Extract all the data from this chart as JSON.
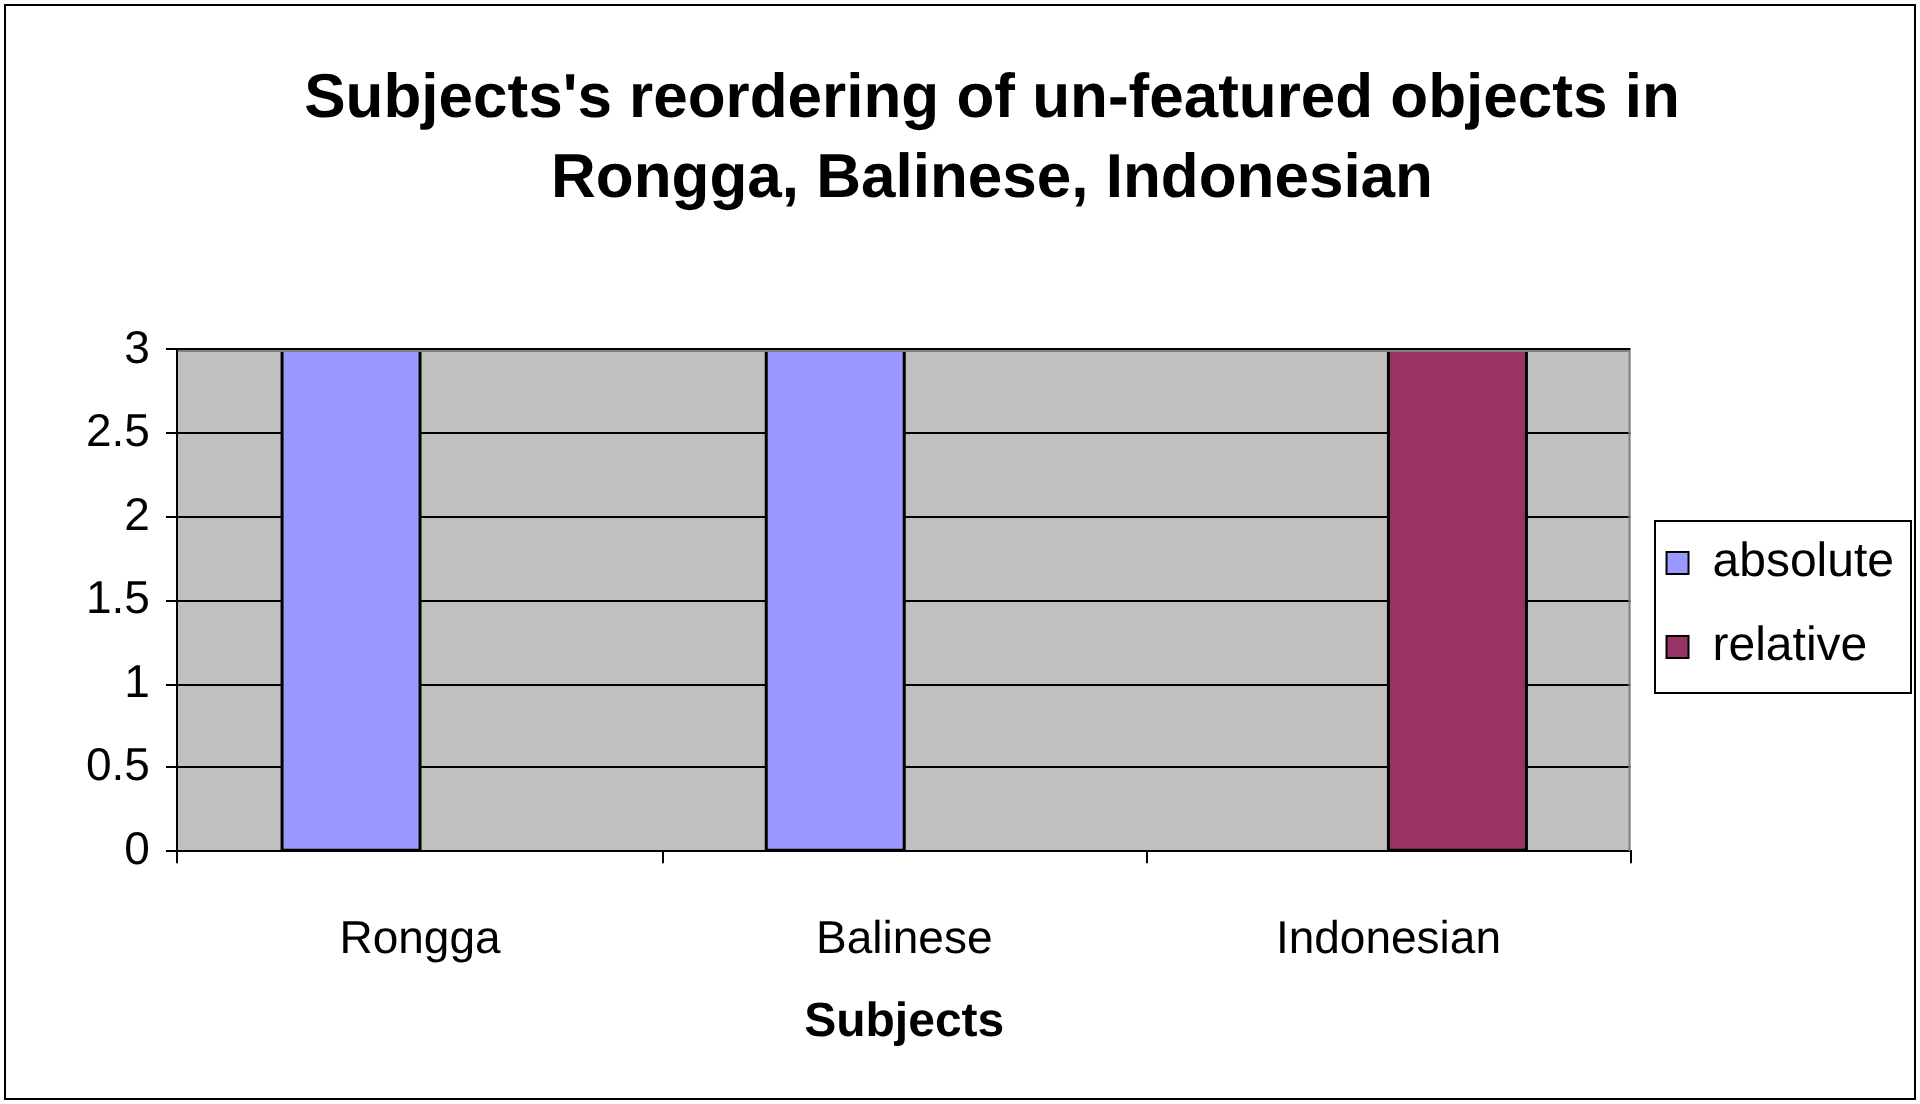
{
  "chart_data": {
    "type": "bar",
    "title": "Subjects's reordering of un-featured objects in Rongga, Balinese, Indonesian",
    "xlabel": "Subjects",
    "categories": [
      "Rongga",
      "Balinese",
      "Indonesian"
    ],
    "series": [
      {
        "name": "absolute",
        "color": "#9999ff",
        "values": [
          3,
          3,
          0
        ]
      },
      {
        "name": "relative",
        "color": "#993366",
        "values": [
          0,
          0,
          3
        ]
      }
    ],
    "ylim": [
      0,
      3
    ],
    "yticks": [
      0,
      0.5,
      1,
      1.5,
      2,
      2.5,
      3
    ],
    "grid": "y",
    "legend": "right"
  }
}
